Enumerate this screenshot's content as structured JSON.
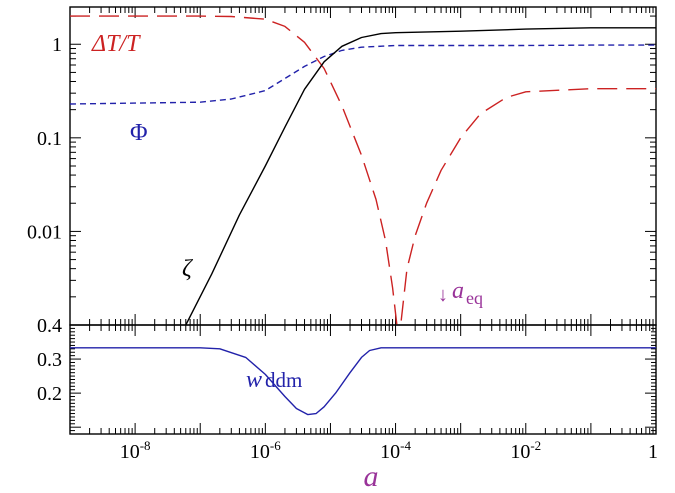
{
  "chart_data": [
    {
      "type": "line",
      "panel": "top",
      "xscale": "log",
      "yscale": "log",
      "xlim": [
        1e-09,
        1
      ],
      "ylim": [
        0.001,
        2.5
      ],
      "grid": false,
      "y_ticks": [
        {
          "value": 1,
          "label": "1"
        },
        {
          "value": 0.1,
          "label": "0.1"
        },
        {
          "value": 0.01,
          "label": "0.01"
        }
      ],
      "series": [
        {
          "name": "ΔT/T",
          "color": "#cc2222",
          "style": "long-dash",
          "x": [
            1e-09,
            1e-08,
            1e-07,
            3e-07,
            1e-06,
            2e-06,
            4e-06,
            8e-06,
            1.5e-05,
            3e-05,
            5e-05,
            7e-05,
            9e-05,
            0.000105,
            0.00012,
            0.00015,
            0.0002,
            0.0003,
            0.0005,
            0.001,
            0.002,
            0.005,
            0.01,
            0.1,
            1
          ],
          "values": [
            2.0,
            2.0,
            2.0,
            1.98,
            1.85,
            1.55,
            1.05,
            0.55,
            0.22,
            0.065,
            0.022,
            0.008,
            0.0025,
            0.001,
            0.001,
            0.004,
            0.009,
            0.02,
            0.045,
            0.1,
            0.18,
            0.27,
            0.31,
            0.335,
            0.335
          ]
        },
        {
          "name": "Φ",
          "color": "#2222aa",
          "style": "short-dash",
          "x": [
            1e-09,
            1e-08,
            1e-07,
            3e-07,
            1e-06,
            2e-06,
            4e-06,
            8e-06,
            1.5e-05,
            3e-05,
            0.0001,
            0.001,
            0.01,
            0.1,
            1
          ],
          "values": [
            0.23,
            0.235,
            0.24,
            0.26,
            0.32,
            0.43,
            0.58,
            0.74,
            0.86,
            0.93,
            0.97,
            0.97,
            0.97,
            0.98,
            0.98
          ],
          "label_position": "left"
        },
        {
          "name": "ζ",
          "color": "#000000",
          "style": "solid",
          "x": [
            6e-08,
            1.5e-07,
            4e-07,
            1e-06,
            2e-06,
            4e-06,
            8e-06,
            1.5e-05,
            3e-05,
            6e-05,
            0.0001,
            0.001,
            0.01,
            0.1,
            1
          ],
          "values": [
            0.001,
            0.0035,
            0.015,
            0.05,
            0.13,
            0.33,
            0.65,
            0.95,
            1.18,
            1.3,
            1.33,
            1.38,
            1.45,
            1.5,
            1.5
          ]
        }
      ],
      "annotations": [
        {
          "base": "a",
          "sub": "eq",
          "arrow": "↓",
          "x": 0.0001
        }
      ]
    },
    {
      "type": "line",
      "panel": "bottom",
      "xscale": "log",
      "xlim": [
        1e-09,
        1
      ],
      "ylim": [
        0.08,
        0.4
      ],
      "grid": false,
      "xlabel": "a",
      "x_ticks": [
        {
          "value": 1e-08,
          "base": "10",
          "exp": "-8"
        },
        {
          "value": 1e-06,
          "base": "10",
          "exp": "-6"
        },
        {
          "value": 0.0001,
          "base": "10",
          "exp": "-4"
        },
        {
          "value": 0.01,
          "base": "10",
          "exp": "-2"
        },
        {
          "value": 1,
          "base": "1",
          "exp": ""
        }
      ],
      "y_ticks": [
        {
          "value": 0.4,
          "label": "0.4"
        },
        {
          "value": 0.3,
          "label": "0.3"
        },
        {
          "value": 0.2,
          "label": "0.2"
        }
      ],
      "series": [
        {
          "name_base": "w",
          "name_sub": "ddm",
          "color": "#2222aa",
          "style": "solid",
          "x": [
            1e-09,
            1e-08,
            1e-07,
            2e-07,
            5e-07,
            1e-06,
            2e-06,
            3e-06,
            4.5e-06,
            6e-06,
            8e-06,
            1.2e-05,
            2e-05,
            3e-05,
            4e-05,
            6e-05,
            0.0001,
            0.01,
            1
          ],
          "values": [
            0.333,
            0.333,
            0.333,
            0.33,
            0.305,
            0.255,
            0.19,
            0.155,
            0.137,
            0.14,
            0.16,
            0.2,
            0.26,
            0.305,
            0.325,
            0.333,
            0.333,
            0.333,
            0.333
          ]
        }
      ]
    }
  ]
}
